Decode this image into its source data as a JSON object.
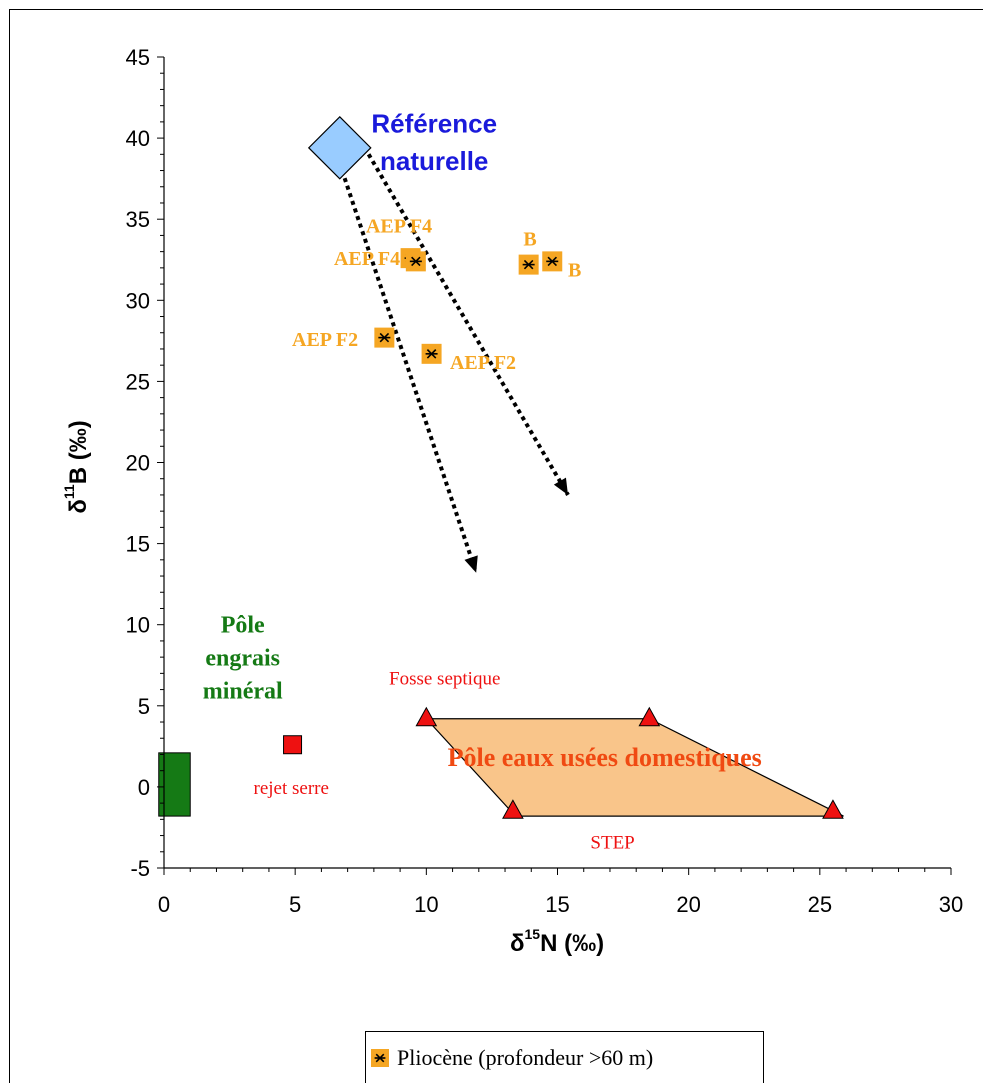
{
  "chart_data": {
    "type": "scatter",
    "title": "",
    "xlabel": {
      "prefix": "δ",
      "sup": "15",
      "main": "N (‰)"
    },
    "ylabel": {
      "prefix": "δ",
      "sup": "11",
      "main": "B (‰)"
    },
    "xlim": [
      0,
      30
    ],
    "ylim": [
      -5,
      45
    ],
    "xticks": [
      "0",
      "5",
      "10",
      "15",
      "20",
      "25",
      "30"
    ],
    "xtick_values": [
      0,
      5,
      10,
      15,
      20,
      25,
      30
    ],
    "yticks": [
      "-5",
      "0",
      "5",
      "10",
      "15",
      "20",
      "25",
      "30",
      "35",
      "40",
      "45"
    ],
    "ytick_values": [
      -5,
      0,
      5,
      10,
      15,
      20,
      25,
      30,
      35,
      40,
      45
    ],
    "grid": false,
    "series": [
      {
        "name": "Pliocène (profondeur >60 m)",
        "color": "#f5a623",
        "marker": "square-asterisk",
        "points": [
          {
            "x": 9.4,
            "y": 32.6
          },
          {
            "x": 9.6,
            "y": 32.4
          },
          {
            "x": 8.4,
            "y": 27.7
          },
          {
            "x": 10.2,
            "y": 26.7
          },
          {
            "x": 13.9,
            "y": 32.2
          },
          {
            "x": 14.8,
            "y": 32.4
          }
        ]
      }
    ],
    "point_labels": [
      {
        "text": "AEP F4",
        "x": 7.7,
        "y": 34.6,
        "anchor": "start"
      },
      {
        "text": "AEP F4",
        "x": 9.0,
        "y": 32.6,
        "anchor": "end"
      },
      {
        "text": "AEP F2",
        "x": 7.4,
        "y": 27.6,
        "anchor": "end"
      },
      {
        "text": "AEP F2",
        "x": 10.9,
        "y": 26.2,
        "anchor": "start"
      },
      {
        "text": "B",
        "x": 13.7,
        "y": 33.8,
        "anchor": "start"
      },
      {
        "text": "B",
        "x": 15.4,
        "y": 31.9,
        "anchor": "start"
      }
    ],
    "reference_natural": {
      "x": 6.7,
      "y": 39.4,
      "color": "#99ccff",
      "label_line1": "Référence",
      "label_line2": "naturelle",
      "label_color": "#1a1adb"
    },
    "arrows": [
      {
        "x1": 6.5,
        "y1": 39.4,
        "x2": 11.9,
        "y2": 13.2
      },
      {
        "x1": 7.8,
        "y1": 39.0,
        "x2": 15.4,
        "y2": 18.0
      }
    ],
    "fertilizer_pole": {
      "x0": -0.2,
      "x1": 1.0,
      "y0": -1.8,
      "y1": 2.1,
      "color": "#157a15",
      "label": [
        "Pôle",
        "engrais",
        "minéral"
      ],
      "label_color": "#157a15"
    },
    "greenhouse_reject": {
      "x": 4.9,
      "y": 2.6,
      "color": "#ee1111",
      "label": "rejet serre"
    },
    "domestic_pole": {
      "polygon": [
        [
          10.0,
          4.2
        ],
        [
          18.5,
          4.2
        ],
        [
          25.9,
          -1.8
        ],
        [
          13.4,
          -1.8
        ]
      ],
      "fill": "#f9c58a",
      "label": "Pôle eaux usées domestiques",
      "label_color": "#f04a12",
      "triangles": [
        {
          "x": 10.0,
          "y": 4.2
        },
        {
          "x": 18.5,
          "y": 4.2
        },
        {
          "x": 13.3,
          "y": -1.5
        },
        {
          "x": 25.5,
          "y": -1.5
        }
      ],
      "triangle_color": "#ee1111",
      "septic_label": "Fosse septique",
      "step_label": "STEP"
    },
    "legend": {
      "label": "Pliocène (profondeur >60 m)",
      "placement": "bottom-center"
    }
  }
}
